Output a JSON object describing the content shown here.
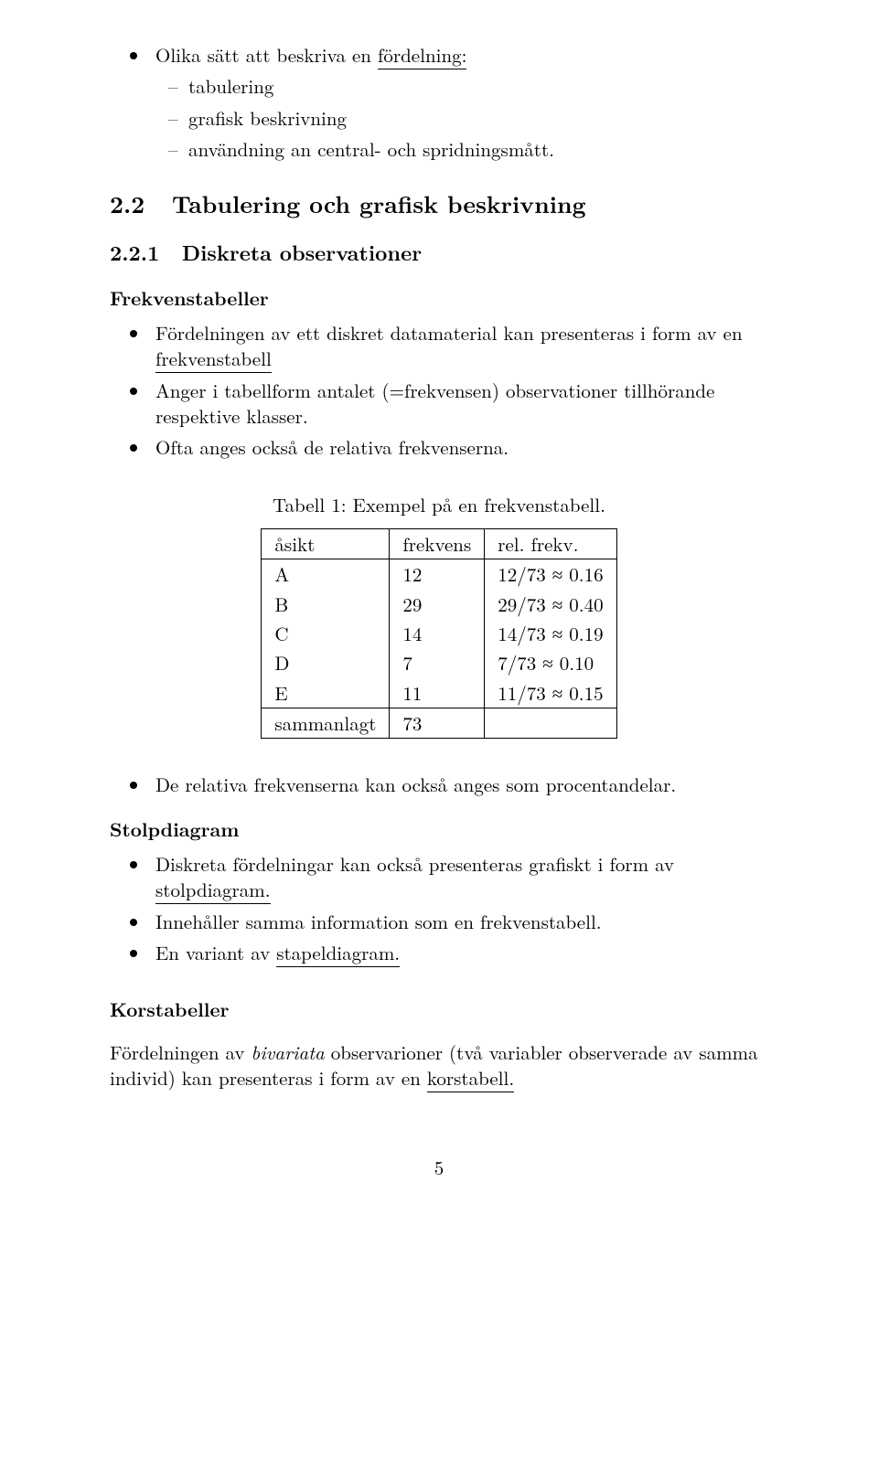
{
  "intro": {
    "bullet1_pre": "Olika sätt att beskriva en ",
    "bullet1_underlined": "fördelning:",
    "dash1": "tabulering",
    "dash2": "grafisk beskrivning",
    "dash3": "användning an central- och spridningsmått."
  },
  "section": {
    "num": "2.2",
    "title": "Tabulering och grafisk beskrivning"
  },
  "subsection": {
    "num": "2.2.1",
    "title": "Diskreta observationer"
  },
  "frek_heading": "Frekvenstabeller",
  "frek_bullets": {
    "b1_pre": "Fördelningen av ett diskret datamaterial kan presenteras i form av en ",
    "b1_underlined": "frekvenstabell",
    "b2": "Anger i tabellform antalet (=frekvensen) observationer tillhörande respektive klasser.",
    "b3": "Ofta anges också de relativa frekvenserna."
  },
  "table": {
    "caption": "Tabell 1: Exempel på en frekvenstabell.",
    "headers": {
      "c1": "åsikt",
      "c2": "frekvens",
      "c3": "rel. frekv."
    },
    "rows": [
      {
        "c1": "A",
        "c2": "12",
        "c3": "12/73 ≈ 0.16"
      },
      {
        "c1": "B",
        "c2": "29",
        "c3": "29/73 ≈ 0.40"
      },
      {
        "c1": "C",
        "c2": "14",
        "c3": "14/73 ≈ 0.19"
      },
      {
        "c1": "D",
        "c2": "7",
        "c3": "7/73 ≈ 0.10"
      },
      {
        "c1": "E",
        "c2": "11",
        "c3": "11/73 ≈ 0.15"
      }
    ],
    "total": {
      "c1": "sammanlagt",
      "c2": "73",
      "c3": ""
    }
  },
  "after_table_bullet": "De relativa frekvenserna kan också anges som procentandelar.",
  "stolp": {
    "heading": "Stolpdiagram",
    "b1_pre": "Diskreta fördelningar kan också presenteras grafiskt i form av ",
    "b1_underlined": "stolpdiagram.",
    "b2": "Innehåller samma information som en frekvenstabell.",
    "b3_pre": "En variant av ",
    "b3_underlined": "stapeldiagram."
  },
  "kors": {
    "heading": "Korstabeller",
    "para_pre": "Fördelningen av ",
    "para_italic": "bivariata",
    "para_mid": " observarioner (två variabler observerade av samma individ) kan presenteras i form av en ",
    "para_underlined": "korstabell."
  },
  "page_number": "5"
}
